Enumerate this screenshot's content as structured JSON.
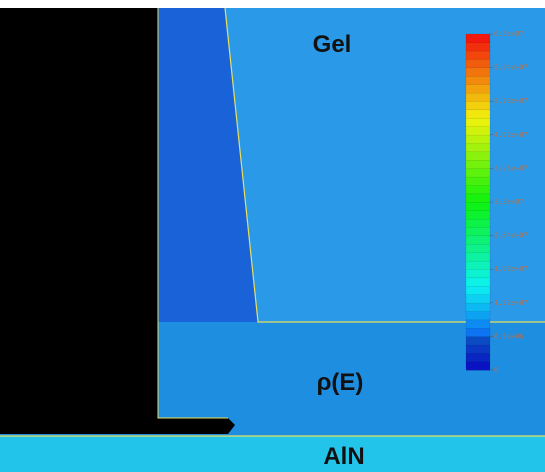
{
  "chart_data": {
    "type": "colormap",
    "annotations": [
      "Gel",
      "ρ(E)",
      "AlN"
    ],
    "ylim": [
      0,
      66000000
    ],
    "yticks": [
      {
        "value": 66000000,
        "label": "6.6e+07"
      },
      {
        "value": 59400000,
        "label": "5.94e+07"
      },
      {
        "value": 52800000,
        "label": "5.28e+07"
      },
      {
        "value": 46200000,
        "label": "4.62e+07"
      },
      {
        "value": 39600000,
        "label": "3.96e+07"
      },
      {
        "value": 33000000,
        "label": "3.3e+07"
      },
      {
        "value": 26400000,
        "label": "2.64e+07"
      },
      {
        "value": 19800000,
        "label": "1.98e+07"
      },
      {
        "value": 13200000,
        "label": "1.32e+07"
      },
      {
        "value": 6600000,
        "label": "6.6e+06"
      },
      {
        "value": 0,
        "label": "0"
      }
    ]
  }
}
